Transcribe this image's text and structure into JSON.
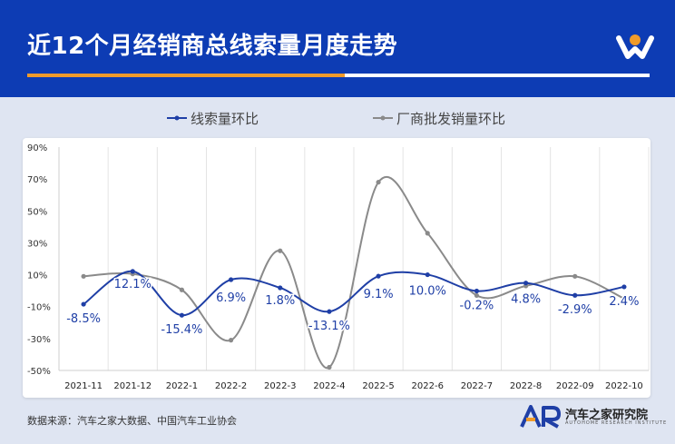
{
  "header": {
    "title": "近12个月经销商总线索量月度走势"
  },
  "footer": {
    "source": "数据来源：汽车之家大数据、中国汽车工业协会",
    "brand_name": "汽车之家研究院",
    "brand_sub": "AUTOHOME RESEARCH INSTITUTE"
  },
  "colors": {
    "header_bg": "#0d3cb4",
    "accent_orange": "#f09b2a",
    "series_blue": "#1f3fa6",
    "series_gray": "#8a8a8a"
  },
  "chart_data": {
    "type": "line",
    "categories": [
      "2021-11",
      "2021-12",
      "2022-1",
      "2022-2",
      "2022-3",
      "2022-4",
      "2022-5",
      "2022-6",
      "2022-7",
      "2022-8",
      "2022-09",
      "2022-10"
    ],
    "ylim": [
      -50,
      90
    ],
    "yticks": [
      -50,
      -30,
      -10,
      10,
      30,
      50,
      70,
      90
    ],
    "ytick_labels": [
      "-50%",
      "-30%",
      "-10%",
      "10%",
      "30%",
      "50%",
      "70%",
      "90%"
    ],
    "grid": "vertical",
    "legend": "top-center",
    "series": [
      {
        "name": "线索量环比",
        "color": "#1f3fa6",
        "values": [
          -8.5,
          12.1,
          -15.4,
          6.9,
          1.8,
          -13.1,
          9.1,
          10.0,
          -0.2,
          4.8,
          -2.9,
          2.4
        ],
        "labels": [
          "-8.5%",
          "12.1%",
          "-15.4%",
          "6.9%",
          "1.8%",
          "-13.1%",
          "9.1%",
          "10.0%",
          "-0.2%",
          "4.8%",
          "-2.9%",
          "2.4%"
        ]
      },
      {
        "name": "厂商批发销量环比",
        "color": "#8a8a8a",
        "values": [
          9.0,
          10.5,
          0.5,
          -31.0,
          25.0,
          -48.0,
          68.0,
          36.0,
          -3.0,
          3.0,
          9.0,
          -5.0
        ],
        "labels": []
      }
    ]
  }
}
